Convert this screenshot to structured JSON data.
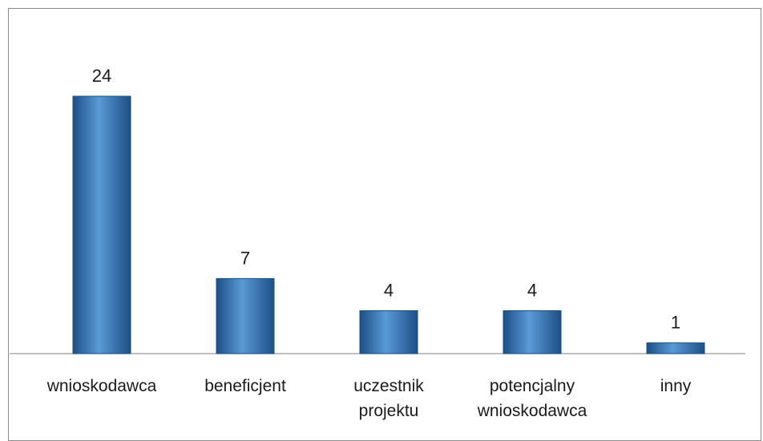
{
  "chart_data": {
    "type": "bar",
    "categories": [
      [
        "wnioskodawca"
      ],
      [
        "beneficjent"
      ],
      [
        "uczestnik",
        "projektu"
      ],
      [
        "potencjalny",
        "wnioskodawca"
      ],
      [
        "inny"
      ]
    ],
    "values": [
      24,
      7,
      4,
      4,
      1
    ],
    "data_labels": [
      "24",
      "7",
      "4",
      "4",
      "1"
    ],
    "title": "",
    "xlabel": "",
    "ylabel": "",
    "ylim": [
      0,
      24
    ],
    "grid": false,
    "legend": "none",
    "colors": {
      "bar": "#2e6fb0",
      "bar_light": "#5a9ad6",
      "bar_dark": "#1c4f86",
      "axis": "#9a9a9a"
    }
  }
}
